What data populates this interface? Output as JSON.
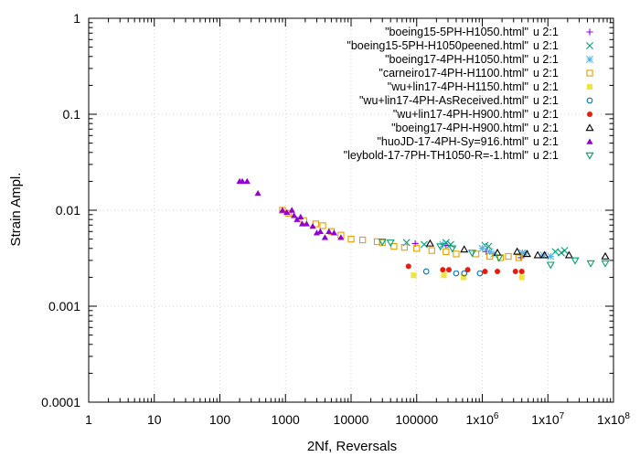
{
  "chart_data": {
    "type": "scatter",
    "title": "",
    "xlabel": "2Nf, Reversals",
    "ylabel": "Strain Ampl.",
    "x_scale": "log",
    "y_scale": "log",
    "xlim": [
      1,
      100000000
    ],
    "ylim": [
      0.0001,
      1
    ],
    "grid": true,
    "legend_position": "top-right",
    "x_ticks": [
      {
        "value": 1,
        "label": "1"
      },
      {
        "value": 10,
        "label": "10"
      },
      {
        "value": 100,
        "label": "100"
      },
      {
        "value": 1000,
        "label": "1000"
      },
      {
        "value": 10000,
        "label": "10000"
      },
      {
        "value": 100000,
        "label": "100000"
      },
      {
        "value": 1000000,
        "label": "1x10",
        "sup": "6"
      },
      {
        "value": 10000000,
        "label": "1x10",
        "sup": "7"
      },
      {
        "value": 100000000,
        "label": "1x10",
        "sup": "8"
      }
    ],
    "y_ticks": [
      {
        "value": 1,
        "label": "1"
      },
      {
        "value": 0.1,
        "label": "0.1"
      },
      {
        "value": 0.01,
        "label": "0.01"
      },
      {
        "value": 0.001,
        "label": "0.001"
      },
      {
        "value": 0.0001,
        "label": "0.0001"
      }
    ],
    "series": [
      {
        "name": "\"boeing15-5PH-H1050.html\"",
        "using": "u  2:1",
        "color": "#9400d3",
        "marker": "plus",
        "x": [
          95000,
          280000,
          1150000,
          3900000
        ],
        "y": [
          0.0045,
          0.0043,
          0.0037,
          0.0032
        ]
      },
      {
        "name": "\"boeing15-5PH-H1050peened.html\"",
        "using": "u  2:1",
        "color": "#009e73",
        "marker": "cross",
        "x": [
          70000,
          130000,
          280000,
          330000,
          1100000,
          1250000,
          13000000,
          16000000,
          18000000
        ],
        "y": [
          0.0046,
          0.0044,
          0.0046,
          0.0044,
          0.0043,
          0.0042,
          0.0037,
          0.0036,
          0.0038
        ]
      },
      {
        "name": "\"boeing17-4PH-H1050.html\"",
        "using": "u  2:1",
        "color": "#56b4e9",
        "marker": "star",
        "x": [
          250000,
          1000000,
          1300000,
          1500000,
          4100000,
          4500000,
          8500000,
          11000000
        ],
        "y": [
          0.0044,
          0.004,
          0.0037,
          0.0035,
          0.0036,
          0.0035,
          0.0034,
          0.0033
        ]
      },
      {
        "name": "\"carneiro17-4PH-H1100.html\"",
        "using": "u  2:1",
        "color": "#e69f00",
        "marker": "open-square",
        "x": [
          900,
          1100,
          1900,
          2900,
          3700,
          5000,
          7000,
          10000,
          15000,
          25000,
          30000,
          45000,
          65000,
          100000,
          170000,
          280000,
          400000,
          800000,
          1300000,
          1900000,
          2500000,
          3600000
        ],
        "y": [
          0.01,
          0.0093,
          0.0078,
          0.0072,
          0.0069,
          0.006,
          0.0055,
          0.005,
          0.0049,
          0.0047,
          0.0046,
          0.0042,
          0.0041,
          0.004,
          0.0038,
          0.0037,
          0.0035,
          0.0035,
          0.0033,
          0.0032,
          0.0033,
          0.0032
        ]
      },
      {
        "name": "\"wu+lin17-4PH-H1150.html\"",
        "using": "u  2:1",
        "color": "#f0e442",
        "marker": "filled-square",
        "x": [
          90000,
          260000,
          520000,
          4000000
        ],
        "y": [
          0.0021,
          0.0021,
          0.002,
          0.002
        ]
      },
      {
        "name": "\"wu+lin17-4PH-AsReceived.html\"",
        "using": "u  2:1",
        "color": "#0072b2",
        "marker": "open-circle",
        "x": [
          140000,
          400000,
          530000,
          920000
        ],
        "y": [
          0.0023,
          0.0022,
          0.0022,
          0.0022
        ]
      },
      {
        "name": "\"wu+lin17-4PH-H900.html\"",
        "using": "u  2:1",
        "color": "#e51e10",
        "marker": "filled-circle",
        "x": [
          75000,
          250000,
          310000,
          600000,
          1100000,
          1700000,
          3200000,
          4000000
        ],
        "y": [
          0.0026,
          0.0024,
          0.0024,
          0.0024,
          0.0023,
          0.0023,
          0.0023,
          0.0023
        ]
      },
      {
        "name": "\"boeing17-4PH-H900.html\"",
        "using": "u  2:1",
        "color": "#000000",
        "marker": "open-triangle",
        "x": [
          160000,
          530000,
          1700000,
          3400000,
          4800000,
          7000000,
          8900000,
          21000000,
          75000000
        ],
        "y": [
          0.0045,
          0.0039,
          0.0036,
          0.0037,
          0.0035,
          0.0034,
          0.0034,
          0.0034,
          0.0033
        ]
      },
      {
        "name": "\"huoJD-17-4PH-Sy=916.html\"",
        "using": "u  2:1",
        "color": "#9400d3",
        "marker": "filled-triangle",
        "x": [
          200,
          220,
          260,
          380,
          900,
          1050,
          1250,
          1350,
          1500,
          1700,
          1800,
          2100,
          2600,
          3000,
          3400,
          4000,
          4600,
          5500,
          7000
        ],
        "y": [
          0.02,
          0.02,
          0.02,
          0.015,
          0.01,
          0.0095,
          0.01,
          0.0088,
          0.008,
          0.0085,
          0.0072,
          0.0072,
          0.0068,
          0.0058,
          0.006,
          0.0052,
          0.006,
          0.0058,
          0.0052
        ]
      },
      {
        "name": "\"leybold-17-7PH-TH1050-R=-1.html\"",
        "using": "u  2:1",
        "color": "#009e73",
        "marker": "open-down-triangle",
        "x": [
          30000,
          40000,
          230000,
          350000,
          700000,
          1800000,
          11000000,
          26000000,
          45000000,
          75000000
        ],
        "y": [
          0.0047,
          0.0046,
          0.0042,
          0.004,
          0.0036,
          0.0032,
          0.0027,
          0.003,
          0.0028,
          0.0028
        ]
      }
    ]
  }
}
